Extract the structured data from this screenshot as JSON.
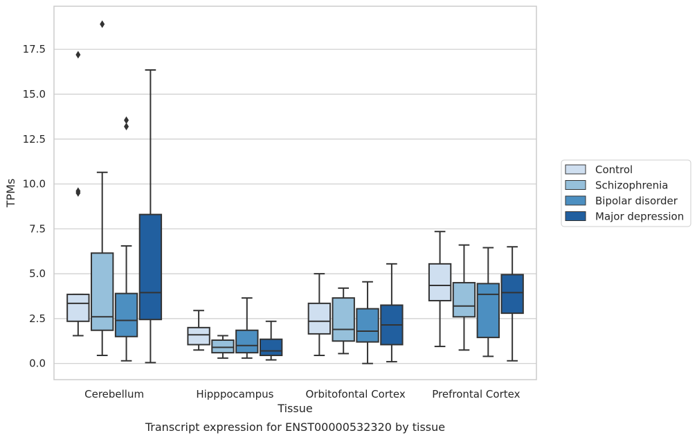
{
  "caption": "Transcript expression for ENST00000532320 by tissue",
  "colors": {
    "Control": "#cfdff0",
    "Schizophrenia": "#96c0db",
    "Bipolar disorder": "#4c8fc1",
    "Major depression": "#215f9f",
    "grid": "#cccccc",
    "box_edge": "#333333"
  },
  "chart_data": {
    "type": "box",
    "title": "",
    "xlabel": "Tissue",
    "ylabel": "TPMs",
    "ylim": [
      -0.9,
      19.9
    ],
    "yticks": [
      0.0,
      2.5,
      5.0,
      7.5,
      10.0,
      12.5,
      15.0,
      17.5
    ],
    "ytick_labels": [
      "0.0",
      "2.5",
      "5.0",
      "7.5",
      "10.0",
      "12.5",
      "15.0",
      "17.5"
    ],
    "grid": "horizontal",
    "legend_position": "right",
    "categories": [
      "Cerebellum",
      "Hipppocampus",
      "Orbitofontal Cortex",
      "Prefrontal Cortex"
    ],
    "series": [
      {
        "name": "Control",
        "boxes": [
          {
            "whisker_low": 1.55,
            "q1": 2.35,
            "median": 3.35,
            "q3": 3.85,
            "whisker_high": 3.85,
            "outliers": [
              9.5,
              9.6,
              17.2
            ]
          },
          {
            "whisker_low": 0.75,
            "q1": 1.05,
            "median": 1.6,
            "q3": 2.0,
            "whisker_high": 2.95,
            "outliers": []
          },
          {
            "whisker_low": 0.45,
            "q1": 1.65,
            "median": 2.35,
            "q3": 3.35,
            "whisker_high": 5.0,
            "outliers": []
          },
          {
            "whisker_low": 0.95,
            "q1": 3.5,
            "median": 4.35,
            "q3": 5.55,
            "whisker_high": 7.35,
            "outliers": []
          }
        ]
      },
      {
        "name": "Schizophrenia",
        "boxes": [
          {
            "whisker_low": 0.45,
            "q1": 1.85,
            "median": 2.6,
            "q3": 6.15,
            "whisker_high": 10.65,
            "outliers": [
              18.9
            ]
          },
          {
            "whisker_low": 0.3,
            "q1": 0.6,
            "median": 0.9,
            "q3": 1.3,
            "whisker_high": 1.55,
            "outliers": []
          },
          {
            "whisker_low": 0.55,
            "q1": 1.25,
            "median": 1.9,
            "q3": 3.65,
            "whisker_high": 4.2,
            "outliers": []
          },
          {
            "whisker_low": 0.75,
            "q1": 2.6,
            "median": 3.2,
            "q3": 4.5,
            "whisker_high": 6.6,
            "outliers": []
          }
        ]
      },
      {
        "name": "Bipolar disorder",
        "boxes": [
          {
            "whisker_low": 0.15,
            "q1": 1.5,
            "median": 2.4,
            "q3": 3.9,
            "whisker_high": 6.55,
            "outliers": [
              13.2,
              13.55
            ]
          },
          {
            "whisker_low": 0.3,
            "q1": 0.6,
            "median": 1.0,
            "q3": 1.85,
            "whisker_high": 3.65,
            "outliers": []
          },
          {
            "whisker_low": 0.0,
            "q1": 1.2,
            "median": 1.8,
            "q3": 3.05,
            "whisker_high": 4.55,
            "outliers": []
          },
          {
            "whisker_low": 0.4,
            "q1": 1.45,
            "median": 3.85,
            "q3": 4.45,
            "whisker_high": 6.45,
            "outliers": []
          }
        ]
      },
      {
        "name": "Major depression",
        "boxes": [
          {
            "whisker_low": 0.05,
            "q1": 2.45,
            "median": 3.95,
            "q3": 8.3,
            "whisker_high": 16.35,
            "outliers": []
          },
          {
            "whisker_low": 0.2,
            "q1": 0.45,
            "median": 0.7,
            "q3": 1.35,
            "whisker_high": 2.35,
            "outliers": []
          },
          {
            "whisker_low": 0.1,
            "q1": 1.05,
            "median": 2.15,
            "q3": 3.25,
            "whisker_high": 5.55,
            "outliers": []
          },
          {
            "whisker_low": 0.15,
            "q1": 2.8,
            "median": 3.95,
            "q3": 4.95,
            "whisker_high": 6.5,
            "outliers": []
          }
        ]
      }
    ]
  }
}
